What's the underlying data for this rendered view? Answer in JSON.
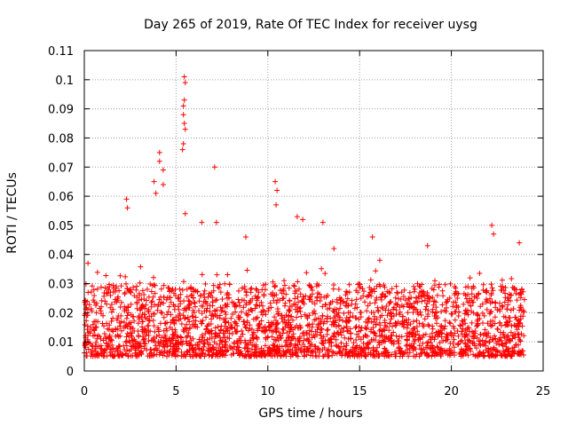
{
  "chart_data": {
    "type": "scatter",
    "title": "Day 265 of 2019, Rate Of TEC Index for receiver uysg",
    "xlabel": "GPS time / hours",
    "ylabel": "ROTI / TECUs",
    "xlim": [
      0,
      25
    ],
    "ylim": [
      0,
      0.11
    ],
    "x_ticks": [
      "0",
      "5",
      "10",
      "15",
      "20",
      "25"
    ],
    "y_ticks": [
      "0",
      "0.01",
      "0.02",
      "0.03",
      "0.04",
      "0.05",
      "0.06",
      "0.07",
      "0.08",
      "0.09",
      "0.1",
      "0.11"
    ],
    "x_tick_values": [
      0,
      5,
      10,
      15,
      20,
      25
    ],
    "y_tick_values": [
      0,
      0.01,
      0.02,
      0.03,
      0.04,
      0.05,
      0.06,
      0.07,
      0.08,
      0.09,
      0.1,
      0.11
    ],
    "grid": true,
    "marker": "+",
    "color": "#ff0000",
    "series": [
      {
        "name": "ROTI",
        "x_range": [
          0,
          24
        ],
        "bulk_range": [
          0.005,
          0.03
        ],
        "notable_points": [
          {
            "x": 5.45,
            "y": 0.101
          },
          {
            "x": 5.5,
            "y": 0.099
          },
          {
            "x": 5.45,
            "y": 0.093
          },
          {
            "x": 5.4,
            "y": 0.091
          },
          {
            "x": 5.4,
            "y": 0.088
          },
          {
            "x": 5.45,
            "y": 0.085
          },
          {
            "x": 5.5,
            "y": 0.083
          },
          {
            "x": 5.4,
            "y": 0.078
          },
          {
            "x": 5.35,
            "y": 0.076
          },
          {
            "x": 4.1,
            "y": 0.075
          },
          {
            "x": 4.1,
            "y": 0.072
          },
          {
            "x": 4.3,
            "y": 0.069
          },
          {
            "x": 7.1,
            "y": 0.07
          },
          {
            "x": 3.8,
            "y": 0.065
          },
          {
            "x": 4.3,
            "y": 0.064
          },
          {
            "x": 10.4,
            "y": 0.065
          },
          {
            "x": 10.5,
            "y": 0.062
          },
          {
            "x": 2.3,
            "y": 0.059
          },
          {
            "x": 2.35,
            "y": 0.056
          },
          {
            "x": 3.9,
            "y": 0.061
          },
          {
            "x": 10.45,
            "y": 0.057
          },
          {
            "x": 5.5,
            "y": 0.054
          },
          {
            "x": 11.6,
            "y": 0.053
          },
          {
            "x": 11.9,
            "y": 0.052
          },
          {
            "x": 13.0,
            "y": 0.051
          },
          {
            "x": 6.4,
            "y": 0.051
          },
          {
            "x": 7.2,
            "y": 0.051
          },
          {
            "x": 22.2,
            "y": 0.05
          },
          {
            "x": 22.3,
            "y": 0.047
          },
          {
            "x": 8.8,
            "y": 0.046
          },
          {
            "x": 15.7,
            "y": 0.046
          },
          {
            "x": 18.7,
            "y": 0.043
          },
          {
            "x": 23.7,
            "y": 0.044
          },
          {
            "x": 13.6,
            "y": 0.042
          },
          {
            "x": 0.2,
            "y": 0.037
          },
          {
            "x": 16.1,
            "y": 0.038
          }
        ]
      }
    ]
  }
}
